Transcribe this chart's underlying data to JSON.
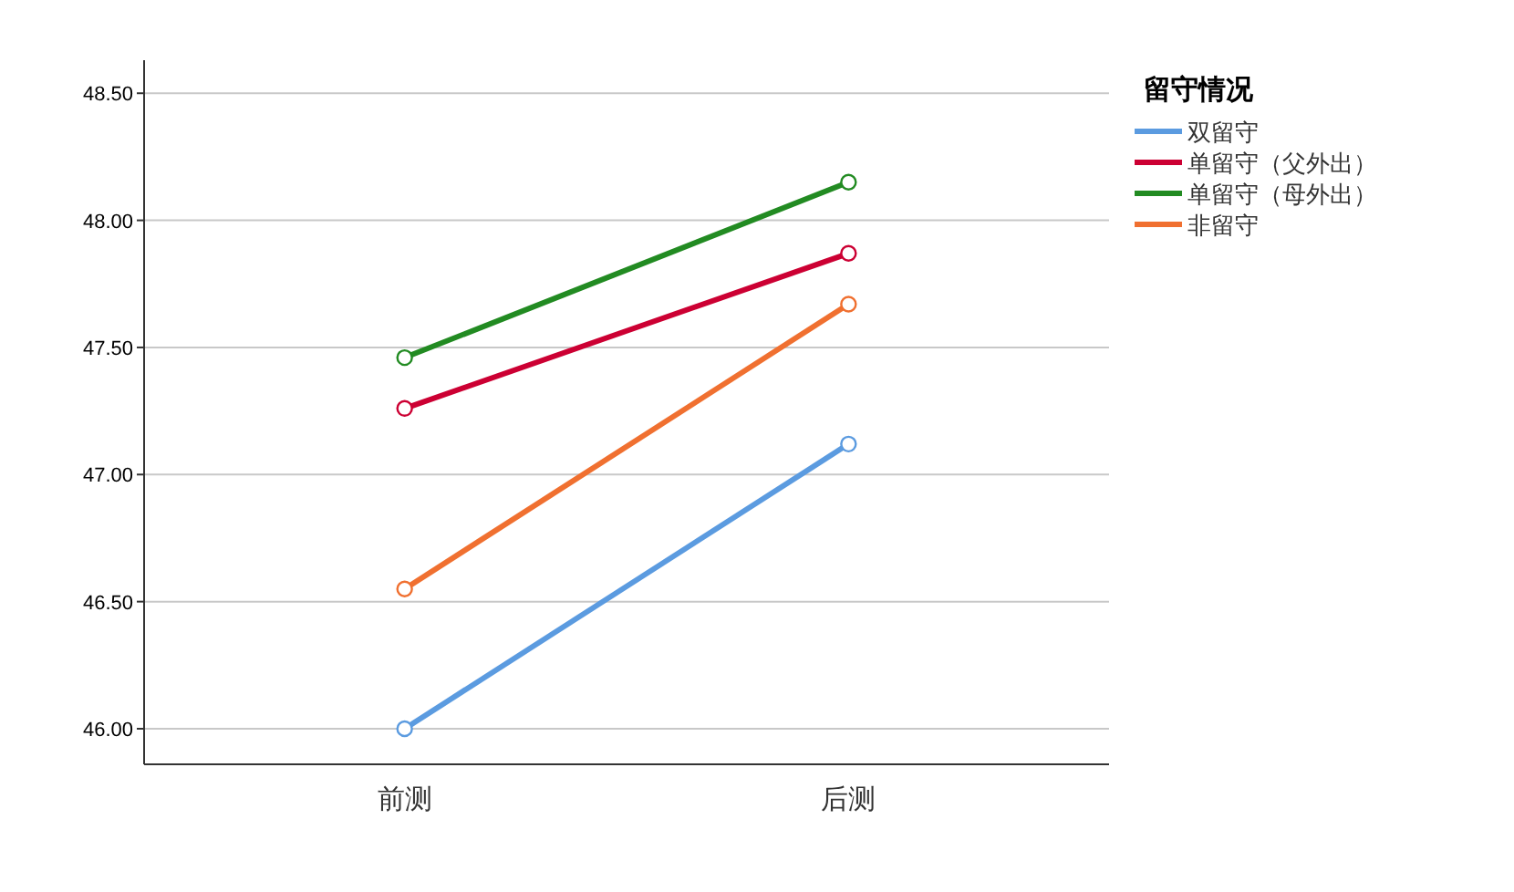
{
  "chart_data": {
    "type": "line",
    "categories": [
      "前测",
      "后测"
    ],
    "series": [
      {
        "name": "双留守",
        "color": "#5b9be0",
        "values": [
          46.0,
          47.12
        ]
      },
      {
        "name": "单留守（父外出）",
        "color": "#cc0033",
        "values": [
          47.26,
          47.87
        ]
      },
      {
        "name": "单留守（母外出）",
        "color": "#228b22",
        "values": [
          47.46,
          48.15
        ]
      },
      {
        "name": "非留守",
        "color": "#f07030",
        "values": [
          46.55,
          47.67
        ]
      }
    ],
    "legend_title": "留守情况",
    "legend": "top right",
    "ylim": [
      45.86,
      48.63
    ],
    "yticks": [
      {
        "value": 46,
        "label": "46.00"
      },
      {
        "value": 46.5,
        "label": "46.50"
      },
      {
        "value": 47,
        "label": "47.00"
      },
      {
        "value": 47.5,
        "label": "47.50"
      },
      {
        "value": 48,
        "label": "48.00"
      },
      {
        "value": 48.5,
        "label": "48.50"
      }
    ],
    "grid": "y",
    "marker": "circle",
    "line_style": "solid"
  }
}
